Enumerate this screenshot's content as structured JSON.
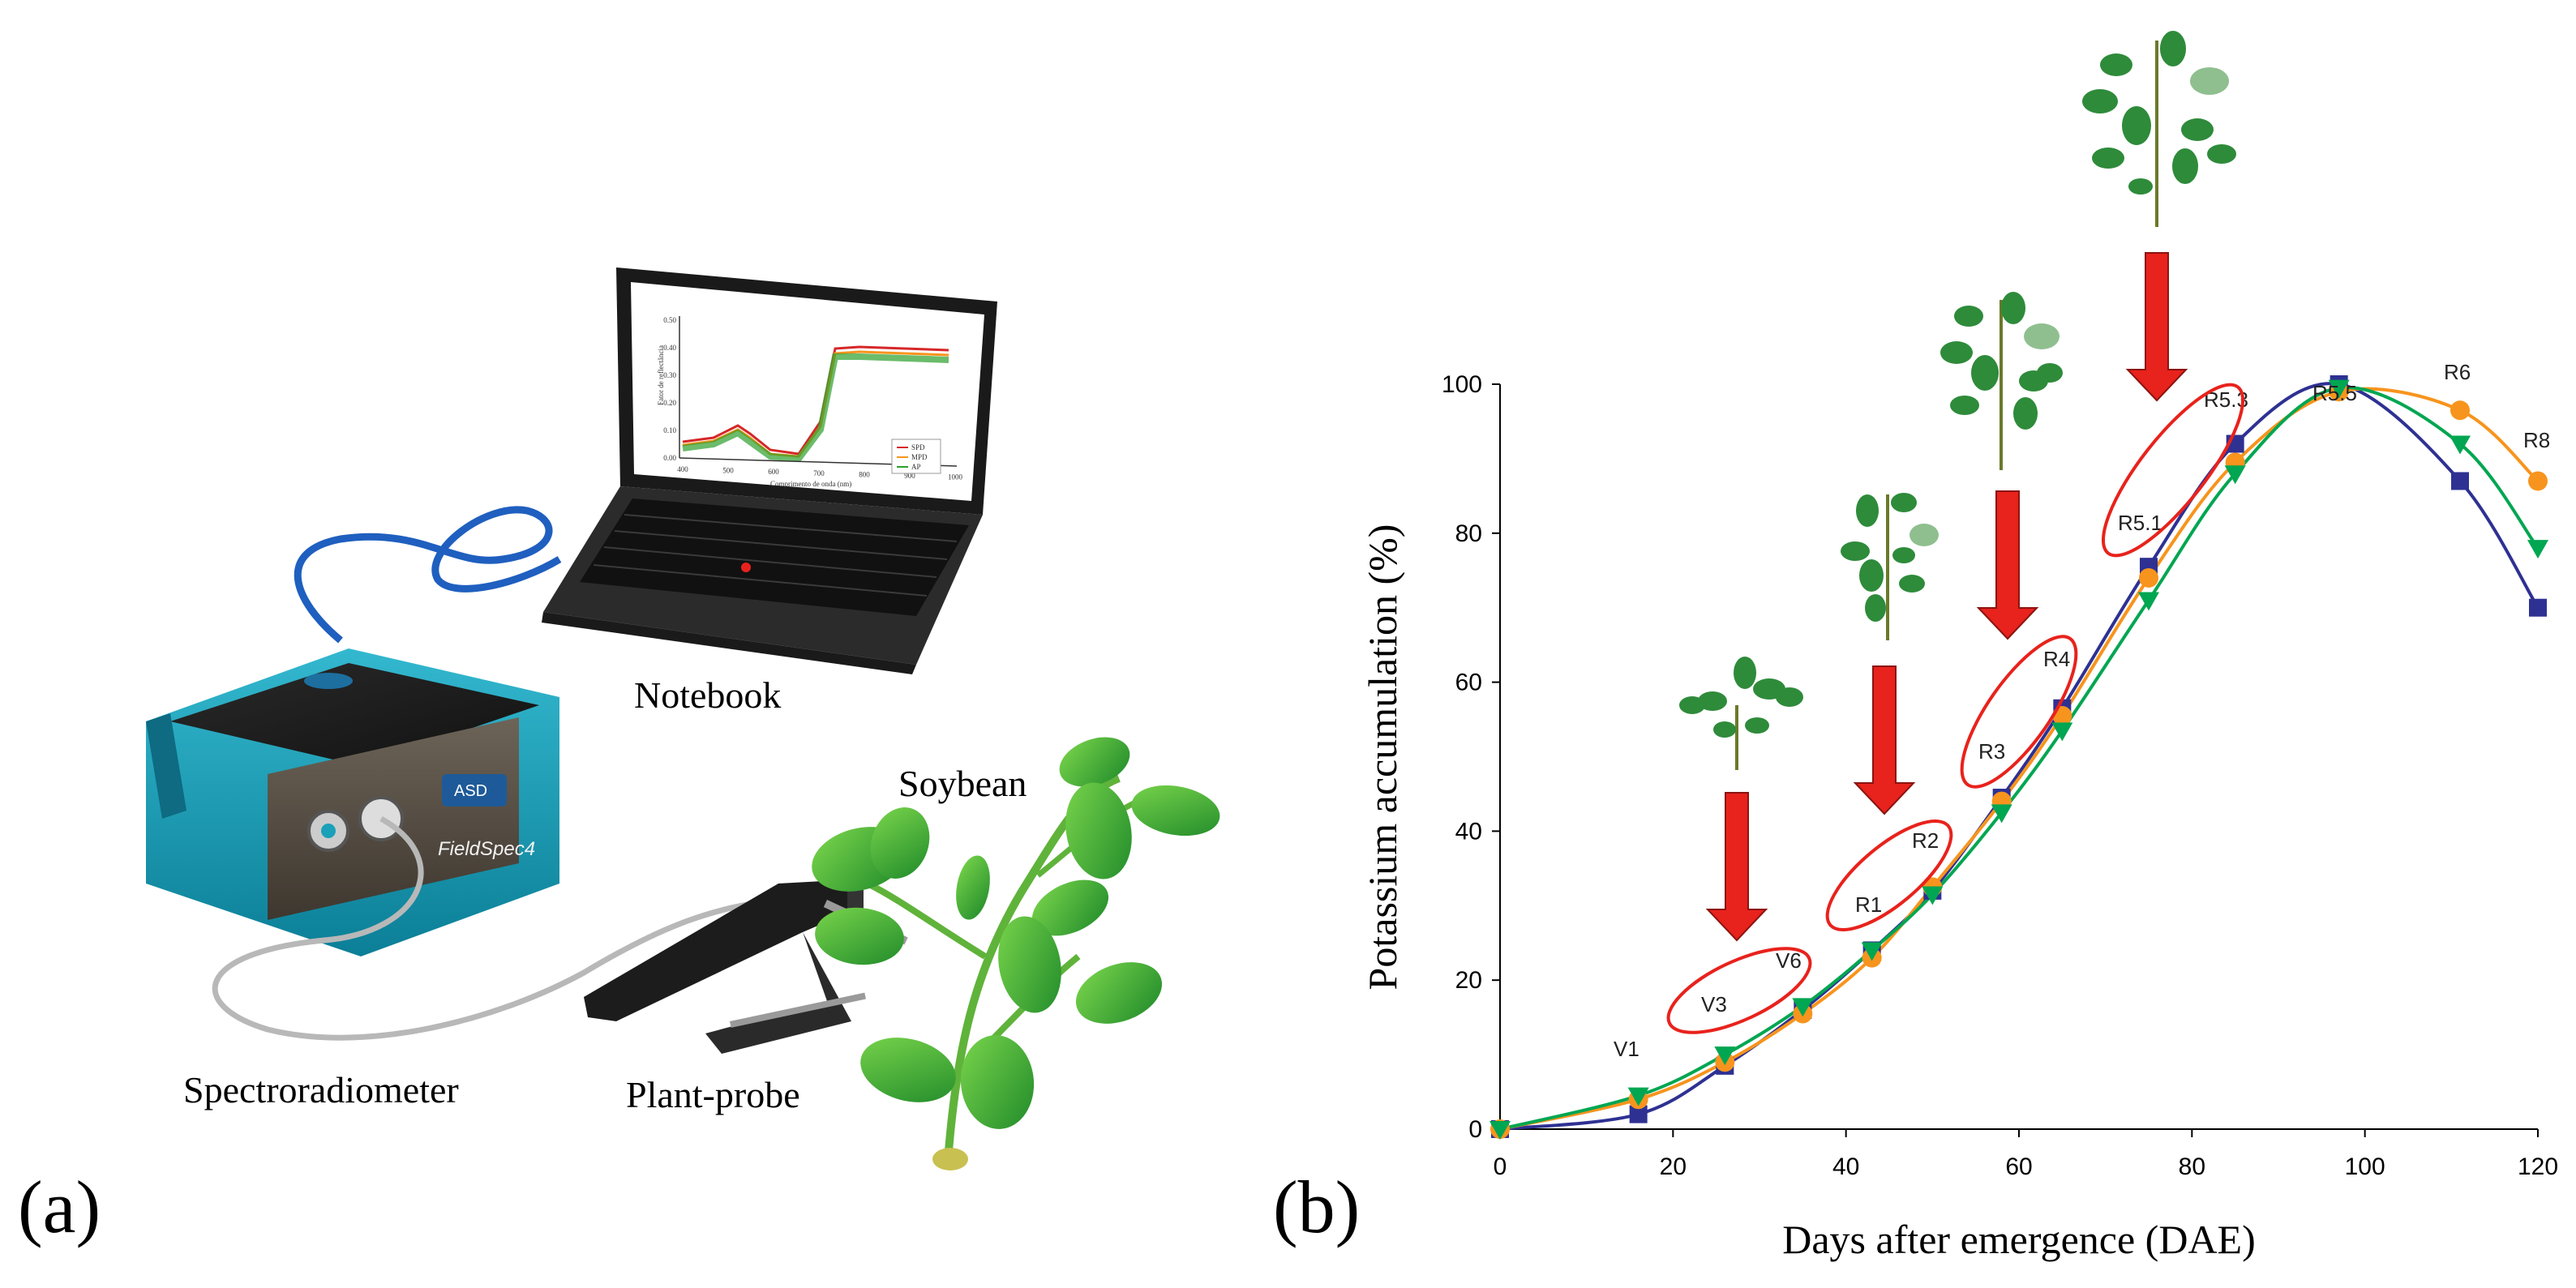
{
  "panel_a": {
    "panel_label": "(a)",
    "labels": {
      "notebook": "Notebook",
      "spectroradiometer": "Spectroradiometer",
      "plant_probe": "Plant-probe",
      "soybean": "Soybean"
    },
    "device_brand": "ASD",
    "device_model": "FieldSpec4",
    "screen_chart": {
      "x_ticks": [
        "400",
        "500",
        "600",
        "700",
        "800",
        "900",
        "1000"
      ],
      "y_ticks": [
        "0.00",
        "0.10",
        "0.20",
        "0.30",
        "0.40",
        "0.50"
      ],
      "ylabel": "Fator de reflectância",
      "xlabel": "Comprimento de onda (nm)",
      "legend": [
        "SPD",
        "MPD",
        "AP"
      ]
    }
  },
  "panel_b": {
    "panel_label": "(b)",
    "stage_labels": [
      "V1",
      "V3",
      "V6",
      "R1",
      "R2",
      "R3",
      "R4",
      "R5.1",
      "R5.3",
      "R5.5",
      "R6",
      "R8"
    ],
    "colors": {
      "blue": "#2e3192",
      "orange": "#f7941d",
      "green": "#00a651",
      "arrow": "#e8221c",
      "ellipse": "#e8221c",
      "leaf": "#2e8b3a"
    }
  },
  "chart_data": {
    "type": "line",
    "title": "",
    "xlabel": "Days after emergence (DAE)",
    "ylabel": "Potassium accumulation (%)",
    "xlim": [
      0,
      120
    ],
    "ylim": [
      0,
      100
    ],
    "x_ticks": [
      0,
      20,
      40,
      60,
      80,
      100,
      120
    ],
    "y_ticks": [
      0,
      20,
      40,
      60,
      80,
      100
    ],
    "grid": false,
    "series": [
      {
        "color": "#2e3192",
        "marker": "square",
        "x": [
          0,
          16,
          26,
          35,
          43,
          50,
          58,
          65,
          75,
          85,
          97,
          111,
          120
        ],
        "y": [
          0,
          2,
          8.5,
          16,
          24,
          32,
          44.5,
          56.5,
          75.5,
          92,
          100,
          87,
          70
        ]
      },
      {
        "color": "#f7941d",
        "marker": "circle",
        "x": [
          0,
          16,
          26,
          35,
          43,
          50,
          58,
          65,
          75,
          85,
          97,
          111,
          120
        ],
        "y": [
          0,
          4,
          9,
          15.5,
          23,
          32.5,
          44,
          55.5,
          74,
          89.5,
          99,
          96.5,
          87
        ]
      },
      {
        "color": "#00a651",
        "marker": "triangle-down",
        "x": [
          0,
          16,
          26,
          35,
          43,
          50,
          58,
          65,
          75,
          85,
          97,
          111,
          120
        ],
        "y": [
          0,
          4.5,
          10,
          16.5,
          24,
          31.5,
          42.5,
          53.5,
          71,
          88,
          99.5,
          92,
          78
        ]
      }
    ]
  }
}
